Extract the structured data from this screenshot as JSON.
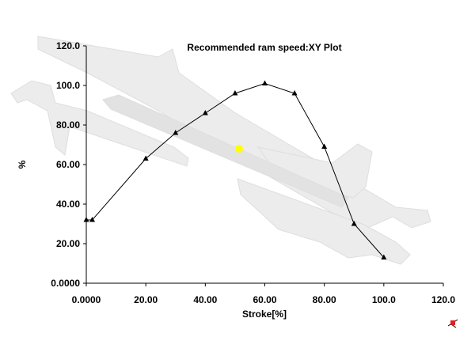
{
  "chart_data": {
    "type": "line",
    "title": "Recommended ram speed:XY Plot",
    "xlabel": "Stroke[%]",
    "ylabel": "%",
    "xlim": [
      0,
      120
    ],
    "ylim": [
      0,
      120
    ],
    "xticks": [
      "0.0000",
      "20.00",
      "40.00",
      "60.00",
      "80.00",
      "100.0",
      "120.0"
    ],
    "yticks": [
      "0.0000",
      "20.00",
      "40.00",
      "60.00",
      "80.00",
      "100.0",
      "120.0"
    ],
    "grid": false,
    "series": [
      {
        "x": [
          0,
          2,
          20,
          30,
          40,
          50,
          60,
          70,
          80,
          90,
          100
        ],
        "y": [
          32,
          32,
          63,
          76,
          86,
          96,
          101,
          96,
          69,
          30,
          13
        ]
      }
    ],
    "colors": {
      "line": "#000000",
      "marker": "#000000",
      "highlight": "#ffff00",
      "part": "#e6e6e6"
    },
    "background_image": "molded-part-silhouette",
    "corner_icon": "triad-axis-icon"
  }
}
